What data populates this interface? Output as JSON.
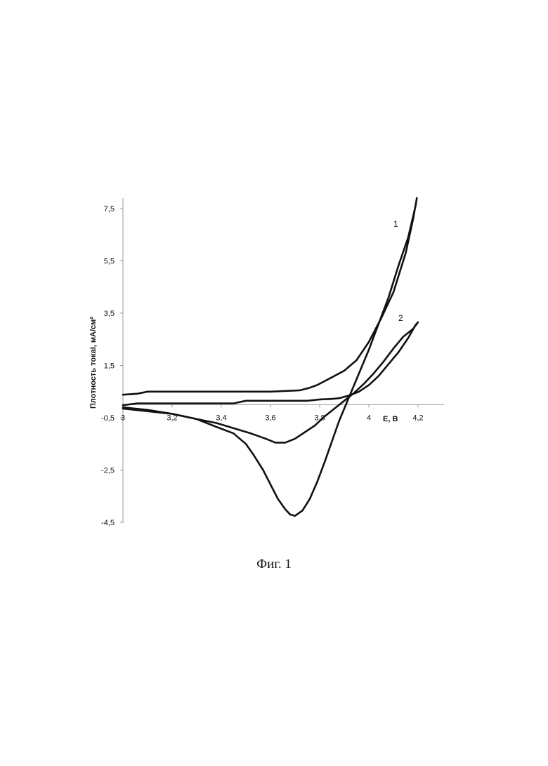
{
  "caption": "Фиг. 1",
  "chart_data": {
    "type": "line",
    "title": "",
    "xlabel": "E, В",
    "ylabel": "Плотность токаI, мА/см²",
    "xlim": [
      3.0,
      4.25
    ],
    "ylim": [
      -4.5,
      8.0
    ],
    "x_tick_labels": [
      "3",
      "3,2",
      "3,4",
      "3,6",
      "3,8",
      "4",
      "4,2"
    ],
    "x_tick_values": [
      3.0,
      3.2,
      3.4,
      3.6,
      3.8,
      4.0,
      4.2
    ],
    "y_tick_labels": [
      "7,5",
      "5,5",
      "3,5",
      "1,5",
      "-0,5",
      "-2,5",
      "-4,5"
    ],
    "y_tick_values": [
      7.5,
      5.5,
      3.5,
      1.5,
      -0.5,
      -2.5,
      -4.5
    ],
    "grid": false,
    "series": [
      {
        "name": "1",
        "x": [
          3.0,
          3.06,
          3.1,
          3.3,
          3.5,
          3.6,
          3.72,
          3.76,
          3.79,
          3.82,
          3.85,
          3.9,
          3.95,
          4.0,
          4.05,
          4.1,
          4.15,
          4.18,
          4.195,
          4.19,
          4.16,
          4.12,
          4.08,
          4.04,
          4.0,
          3.96,
          3.92,
          3.88,
          3.85,
          3.82,
          3.79,
          3.76,
          3.73,
          3.7,
          3.68,
          3.66,
          3.63,
          3.6,
          3.57,
          3.53,
          3.5,
          3.45,
          3.38,
          3.3,
          3.2,
          3.1,
          3.05,
          3.0
        ],
        "y": [
          0.38,
          0.42,
          0.5,
          0.5,
          0.5,
          0.5,
          0.55,
          0.65,
          0.75,
          0.9,
          1.05,
          1.3,
          1.7,
          2.4,
          3.3,
          4.3,
          5.8,
          7.1,
          7.9,
          7.6,
          6.4,
          5.3,
          4.1,
          3.1,
          2.1,
          1.2,
          0.3,
          -0.6,
          -1.4,
          -2.2,
          -2.95,
          -3.6,
          -4.05,
          -4.25,
          -4.2,
          -4.0,
          -3.6,
          -3.05,
          -2.5,
          -1.9,
          -1.5,
          -1.1,
          -0.85,
          -0.55,
          -0.35,
          -0.2,
          -0.15,
          -0.1
        ]
      },
      {
        "name": "2",
        "x": [
          3.0,
          3.06,
          3.15,
          3.35,
          3.45,
          3.5,
          3.55,
          3.6,
          3.7,
          3.75,
          3.8,
          3.85,
          3.88,
          3.92,
          3.96,
          4.0,
          4.04,
          4.08,
          4.12,
          4.16,
          4.19,
          4.2,
          4.18,
          4.14,
          4.1,
          4.06,
          4.02,
          3.98,
          3.94,
          3.9,
          3.86,
          3.82,
          3.78,
          3.74,
          3.7,
          3.66,
          3.62,
          3.58,
          3.52,
          3.45,
          3.38,
          3.3,
          3.2,
          3.1,
          3.05,
          3.0
        ],
        "y": [
          -0.02,
          0.05,
          0.05,
          0.05,
          0.05,
          0.15,
          0.15,
          0.15,
          0.15,
          0.15,
          0.2,
          0.22,
          0.25,
          0.35,
          0.5,
          0.75,
          1.1,
          1.55,
          2.0,
          2.55,
          3.05,
          3.15,
          2.9,
          2.6,
          2.15,
          1.65,
          1.2,
          0.8,
          0.45,
          0.15,
          -0.15,
          -0.45,
          -0.8,
          -1.05,
          -1.3,
          -1.45,
          -1.45,
          -1.3,
          -1.1,
          -0.9,
          -0.7,
          -0.55,
          -0.35,
          -0.25,
          -0.2,
          -0.15
        ]
      }
    ],
    "curve_labels": [
      {
        "text": "1",
        "x": 4.1,
        "y": 6.8
      },
      {
        "text": "2",
        "x": 4.12,
        "y": 3.2
      }
    ]
  }
}
